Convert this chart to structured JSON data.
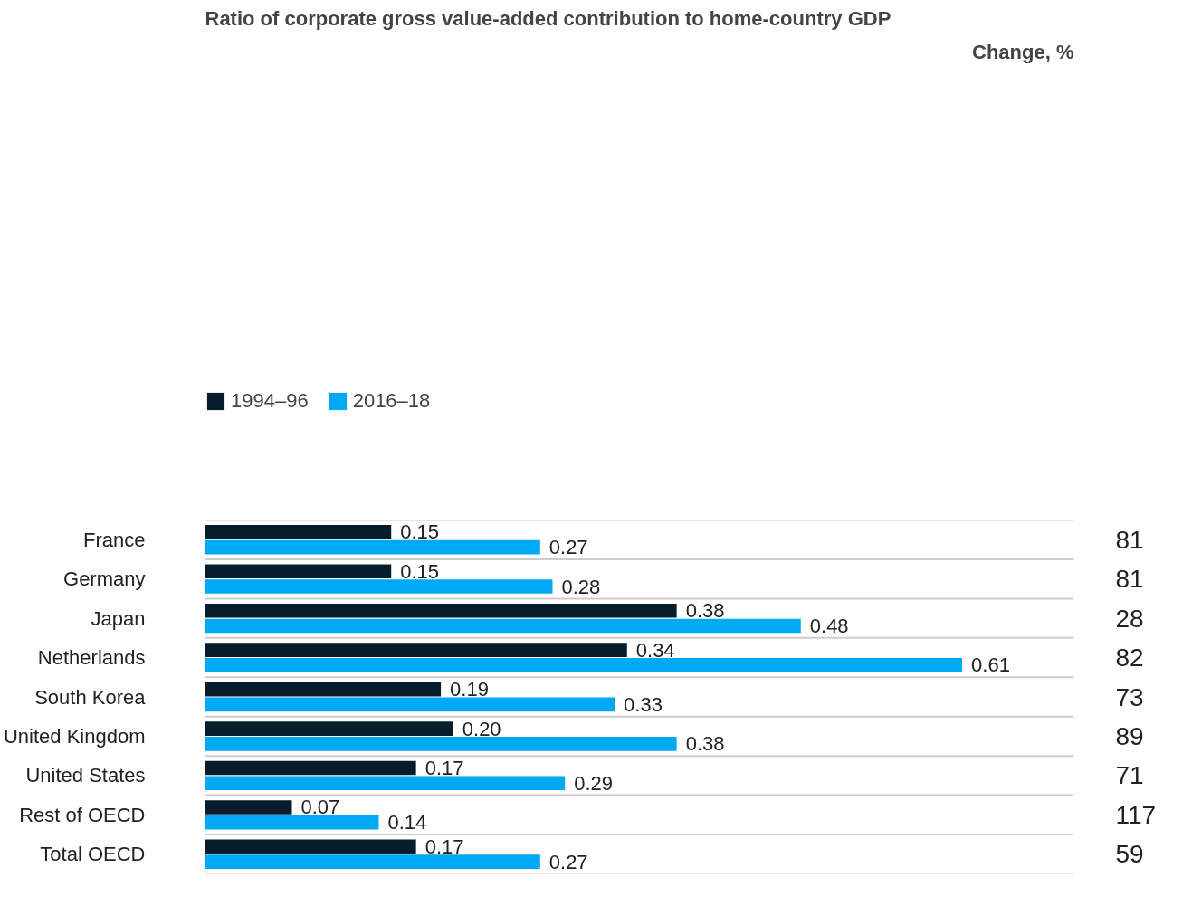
{
  "chart_data": {
    "type": "bar",
    "orientation": "horizontal",
    "title": "Ratio of corporate gross value-added contribution to home-country GDP",
    "categories": [
      "France",
      "Germany",
      "Japan",
      "Netherlands",
      "South Korea",
      "United Kingdom",
      "United States",
      "Rest of OECD",
      "Total OECD"
    ],
    "series": [
      {
        "name": "1994–96",
        "color": "#071d2b",
        "values": [
          0.15,
          0.15,
          0.38,
          0.34,
          0.19,
          0.2,
          0.17,
          0.07,
          0.17
        ],
        "value_labels": [
          "0.15",
          "0.15",
          "0.38",
          "0.34",
          "0.19",
          "0.20",
          "0.17",
          "0.07",
          "0.17"
        ]
      },
      {
        "name": "2016–18",
        "color": "#00a9f4",
        "values": [
          0.27,
          0.28,
          0.48,
          0.61,
          0.33,
          0.38,
          0.29,
          0.14,
          0.27
        ],
        "value_labels": [
          "0.27",
          "0.28",
          "0.48",
          "0.61",
          "0.33",
          "0.38",
          "0.29",
          "0.14",
          "0.27"
        ]
      }
    ],
    "xlim": [
      0,
      0.7
    ],
    "tick_labels": "y",
    "legend": "top left",
    "grid": "y",
    "annotations": [
      "Change, %",
      "81",
      "81",
      "28",
      "82",
      "73",
      "89",
      "71",
      "117",
      "59"
    ]
  }
}
